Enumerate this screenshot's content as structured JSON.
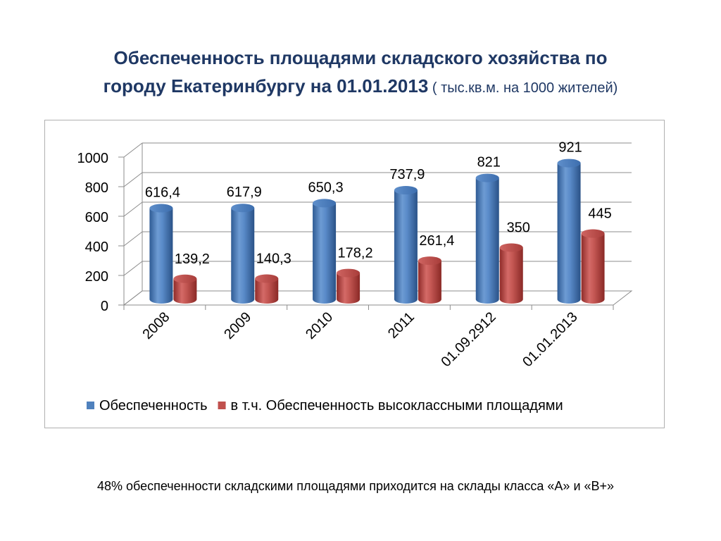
{
  "title": {
    "line1": "Обеспеченность площадями складского хозяйства по",
    "line2": "городу Екатеринбургу  на 01.01.2013",
    "unit": " ( тыс.кв.м. на 1000 жителей)"
  },
  "chart_data": {
    "type": "bar",
    "categories": [
      "2008",
      "2009",
      "2010",
      "2011",
      "01.09.2912",
      "01.01.2013"
    ],
    "series": [
      {
        "name": "Обеспеченность",
        "color": "#4f81bd",
        "values": [
          616.4,
          617.9,
          650.3,
          737.9,
          821,
          921
        ],
        "labels": [
          "616,4",
          "617,9",
          "650,3",
          "737,9",
          "821",
          "921"
        ]
      },
      {
        "name": "в т.ч. Обеспеченность высоклассными площадями",
        "color": "#c0504d",
        "values": [
          139.2,
          140.3,
          178.2,
          261.4,
          350,
          445
        ],
        "labels": [
          "139,2",
          "140,3",
          "178,2",
          "261,4",
          "350",
          "445"
        ]
      }
    ],
    "yticks": [
      "0",
      "200",
      "400",
      "600",
      "800",
      "1000"
    ],
    "ylim": [
      0,
      1000
    ],
    "grid": true,
    "legend": "bottom",
    "style": "3d-cylinder"
  },
  "footnote": "48% обеспеченности складскими площадями приходится на склады класса «А» и «В+»"
}
